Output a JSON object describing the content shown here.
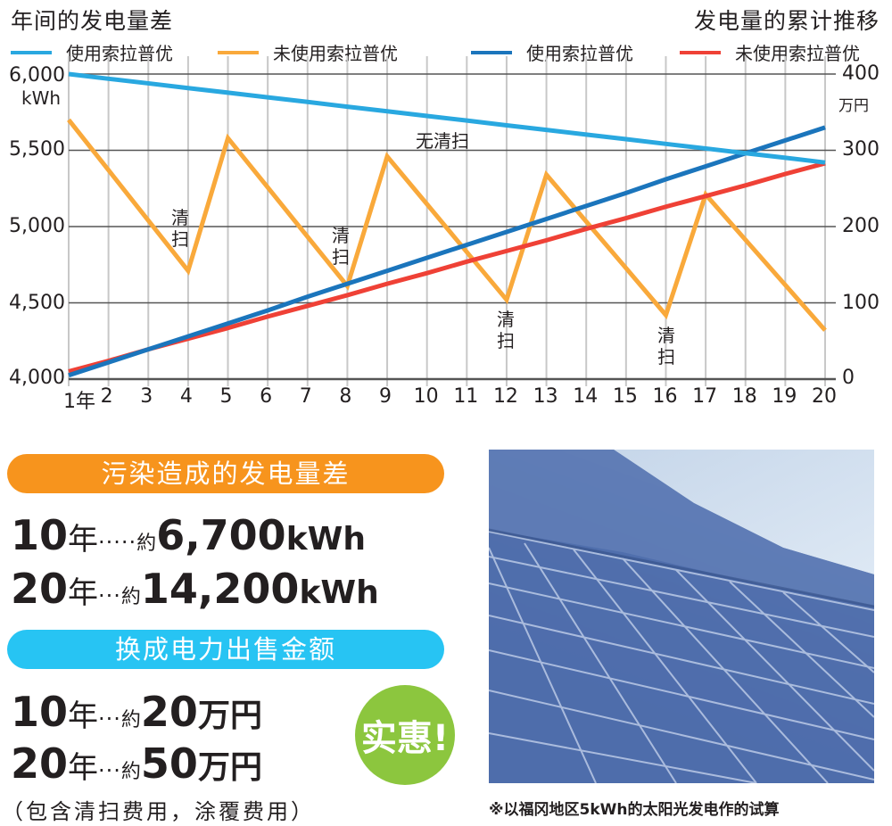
{
  "left_title": "年间的发电量差",
  "right_title": "发电量的累计推移",
  "legend": [
    {
      "label": "使用索拉普优",
      "color": "#29a8e0",
      "axis": "left"
    },
    {
      "label": "未使用索拉普优",
      "color": "#f9a93b",
      "axis": "left"
    },
    {
      "label": "使用索拉普优",
      "color": "#1b75bc",
      "axis": "right"
    },
    {
      "label": "未使用索拉普优",
      "color": "#ef4136",
      "axis": "right"
    }
  ],
  "left_axis": {
    "ticks": [
      "6,000",
      "5,500",
      "5,000",
      "4,500",
      "4,000"
    ],
    "unit": "kWh"
  },
  "right_axis": {
    "ticks": [
      "400",
      "300",
      "200",
      "100",
      "0"
    ],
    "unit": "万円"
  },
  "x_axis": {
    "ticks": [
      "1年",
      "2",
      "3",
      "4",
      "5",
      "6",
      "7",
      "8",
      "9",
      "10",
      "11",
      "12",
      "13",
      "14",
      "15",
      "16",
      "17",
      "18",
      "19",
      "20"
    ]
  },
  "annotations": {
    "no_cleaning": "无清扫",
    "cleaning_top": "清",
    "cleaning_bottom": "扫"
  },
  "chart_data": {
    "type": "line",
    "title": "年间的发电量差 / 发电量的累计推移",
    "x": [
      1,
      2,
      3,
      4,
      5,
      6,
      7,
      8,
      9,
      10,
      11,
      12,
      13,
      14,
      15,
      16,
      17,
      18,
      19,
      20
    ],
    "xlabel": "年",
    "ylabel_left": "kWh",
    "ylabel_right": "万円",
    "ylim_left": [
      4000,
      6000
    ],
    "ylim_right": [
      0,
      400
    ],
    "grid": true,
    "legend_position": "top",
    "series": [
      {
        "name": "使用索拉普优 (年间发电量)",
        "axis": "left",
        "color": "#29a8e0",
        "values": [
          6000,
          5969,
          5939,
          5908,
          5878,
          5847,
          5817,
          5786,
          5756,
          5725,
          5695,
          5664,
          5634,
          5603,
          5573,
          5542,
          5512,
          5481,
          5451,
          5420
        ]
      },
      {
        "name": "未使用索拉普优 (年间发电量)",
        "axis": "left",
        "color": "#f9a93b",
        "values": [
          5700,
          5370,
          5040,
          4710,
          5580,
          5257,
          4933,
          4610,
          5460,
          5147,
          4833,
          4520,
          5340,
          5033,
          4727,
          4420,
          5210,
          4913,
          4617,
          4320
        ]
      },
      {
        "name": "使用索拉普优 (累计)",
        "axis": "right",
        "color": "#1b75bc",
        "values": [
          5,
          22,
          39,
          56,
          73,
          90,
          108,
          125,
          142,
          159,
          176,
          193,
          210,
          227,
          244,
          262,
          279,
          296,
          313,
          330
        ]
      },
      {
        "name": "未使用索拉普优 (累计)",
        "axis": "right",
        "color": "#ef4136",
        "values": [
          10,
          24,
          39,
          53,
          67,
          82,
          96,
          110,
          125,
          139,
          154,
          168,
          182,
          197,
          211,
          226,
          240,
          254,
          269,
          283
        ]
      }
    ],
    "annotations": [
      {
        "text": "无清扫",
        "x": 10,
        "series": "使用索拉普优 (年间发电量)"
      },
      {
        "text": "清扫",
        "x": 4
      },
      {
        "text": "清扫",
        "x": 8
      },
      {
        "text": "清扫",
        "x": 12
      },
      {
        "text": "清扫",
        "x": 16
      }
    ]
  },
  "summary_power": {
    "header": "污染造成的发电量差",
    "header_color": "#f7941d",
    "rows": [
      {
        "years": "10",
        "year_unit": "年",
        "dots": "·····",
        "approx": "約",
        "value": "6,700",
        "unit": "kWh"
      },
      {
        "years": "20",
        "year_unit": "年",
        "dots": "···",
        "approx": "約",
        "value": "14,200",
        "unit": "kWh"
      }
    ]
  },
  "summary_money": {
    "header": "换成电力出售金额",
    "header_color": "#27c4f3",
    "rows": [
      {
        "years": "10",
        "year_unit": "年",
        "dots": "···",
        "approx": "約",
        "value": "20",
        "unit": "万円"
      },
      {
        "years": "20",
        "year_unit": "年",
        "dots": "···",
        "approx": "約",
        "value": "50",
        "unit": "万円"
      }
    ],
    "note": "（包含清扫费用，涂覆费用）",
    "badge": "实惠!",
    "badge_color": "#8cc63e"
  },
  "photo": {
    "alt": "solar-panel-photo"
  },
  "caption": "※以福冈地区5kWh的太阳光发电作的试算"
}
